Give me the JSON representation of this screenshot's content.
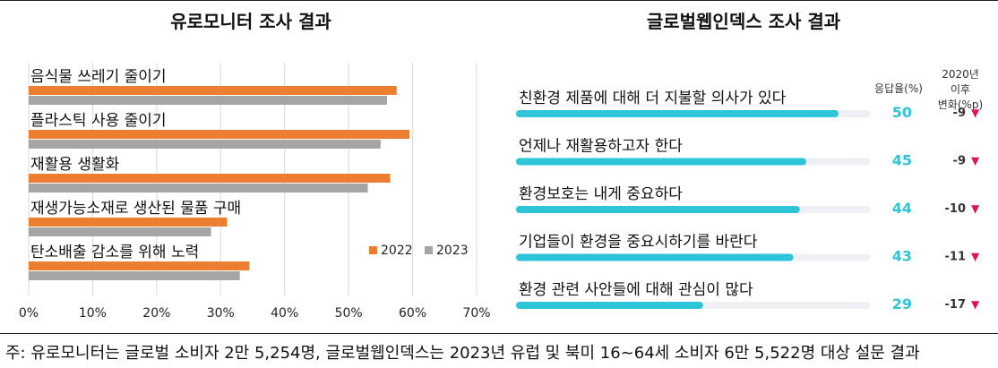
{
  "charts": [
    {
      "type": "bar",
      "title": "유로모니터 조사 결과",
      "categories": [
        "음식물 쓰레기 줄이기",
        "플라스틱 사용 줄이기",
        "재활용 생활화",
        "재생가능소재로 생산된 물품 구매",
        "탄소배출 감소를 위해 노력"
      ],
      "series": [
        {
          "name": "2022",
          "color": "#ED7D31",
          "values": [
            57.5,
            59.5,
            56.5,
            31,
            34.5
          ]
        },
        {
          "name": "2023",
          "color": "#A5A5A5",
          "values": [
            56,
            55,
            53,
            28.5,
            33
          ]
        }
      ],
      "xlim": [
        0,
        70
      ],
      "xticks": [
        "0%",
        "10%",
        "20%",
        "30%",
        "40%",
        "50%",
        "60%",
        "70%"
      ],
      "grid": true,
      "legend": "bottom-right"
    },
    {
      "type": "bar",
      "title": "글로벌웹인덱스 조사 결과",
      "header_response": "응답율(%)",
      "header_change": "2020년 이후 변화(%p)",
      "categories": [
        "친환경 제품에 대해 더 지불할 의사가 있다",
        "언제나 재활용하고자 한다",
        "환경보호는 내게 중요하다",
        "기업들이 환경을 중요시하기를 바란다",
        "환경 관련 사안들에 대해 관심이 많다"
      ],
      "values": [
        50,
        45,
        44,
        43,
        29
      ],
      "value_labels": [
        "50",
        "45",
        "44",
        "43",
        "29"
      ],
      "changes": [
        -9,
        -9,
        -10,
        -11,
        -17
      ],
      "change_labels": [
        "-9",
        "-9",
        "-10",
        "-11",
        "-17"
      ],
      "change_marker": "▼",
      "bar_color": "#2EC5D8",
      "track_color": "#EEF0F5",
      "value_color": "#2EC5D8",
      "marker_color": "#E0115F",
      "xlim": [
        0,
        55
      ]
    }
  ],
  "footnote": "주: 유로모니터는 글로벌 소비자 2만 5,254명, 글로벌웹인덱스는 2023년 유럽 및 북미 16~64세 소비자 6만 5,522명 대상 설문 결과"
}
